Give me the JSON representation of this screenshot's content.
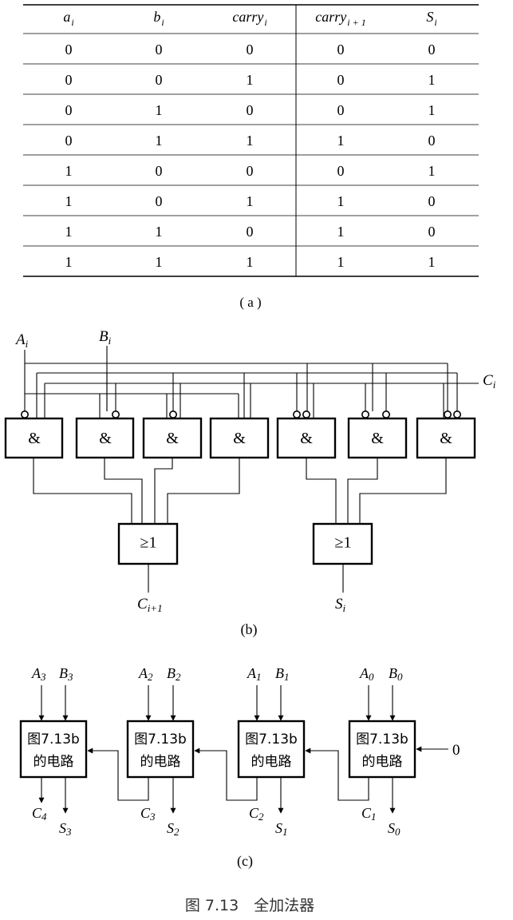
{
  "figure": {
    "caption": "图 7.13　全加法器",
    "part_a": {
      "label": "( a )",
      "headers": [
        {
          "base": "a",
          "sub": "i"
        },
        {
          "base": "b",
          "sub": "i"
        },
        {
          "base": "carry",
          "sub": "i"
        },
        {
          "base": "carry",
          "sub": "i + 1"
        },
        {
          "base": "S",
          "sub": "i"
        }
      ],
      "rows": [
        [
          "0",
          "0",
          "0",
          "0",
          "0"
        ],
        [
          "0",
          "0",
          "1",
          "0",
          "1"
        ],
        [
          "0",
          "1",
          "0",
          "0",
          "1"
        ],
        [
          "0",
          "1",
          "1",
          "1",
          "0"
        ],
        [
          "1",
          "0",
          "0",
          "0",
          "1"
        ],
        [
          "1",
          "0",
          "1",
          "1",
          "0"
        ],
        [
          "1",
          "1",
          "0",
          "1",
          "0"
        ],
        [
          "1",
          "1",
          "1",
          "1",
          "1"
        ]
      ]
    },
    "part_b": {
      "label": "(b)",
      "inputs": {
        "a": {
          "base": "A",
          "sub": "i"
        },
        "b": {
          "base": "B",
          "sub": "i"
        },
        "c": {
          "base": "C",
          "sub": "i"
        }
      },
      "and_gate_symbol": "&",
      "or_gate_symbol": "≥1",
      "outputs": {
        "carry": {
          "base": "C",
          "sub": "i+1"
        },
        "sum": {
          "base": "S",
          "sub": "i"
        }
      }
    },
    "part_c": {
      "label": "(c)",
      "block_line1": "图7.13b",
      "block_line2": "的电路",
      "constant_input": "0",
      "stages": [
        {
          "a": {
            "base": "A",
            "sub": "3"
          },
          "b": {
            "base": "B",
            "sub": "3"
          },
          "c": {
            "base": "C",
            "sub": "4"
          },
          "s": {
            "base": "S",
            "sub": "3"
          }
        },
        {
          "a": {
            "base": "A",
            "sub": "2"
          },
          "b": {
            "base": "B",
            "sub": "2"
          },
          "c": {
            "base": "C",
            "sub": "3"
          },
          "s": {
            "base": "S",
            "sub": "2"
          }
        },
        {
          "a": {
            "base": "A",
            "sub": "1"
          },
          "b": {
            "base": "B",
            "sub": "1"
          },
          "c": {
            "base": "C",
            "sub": "2"
          },
          "s": {
            "base": "S",
            "sub": "1"
          }
        },
        {
          "a": {
            "base": "A",
            "sub": "0"
          },
          "b": {
            "base": "B",
            "sub": "0"
          },
          "c": {
            "base": "C",
            "sub": "1"
          },
          "s": {
            "base": "S",
            "sub": "0"
          }
        }
      ]
    }
  }
}
